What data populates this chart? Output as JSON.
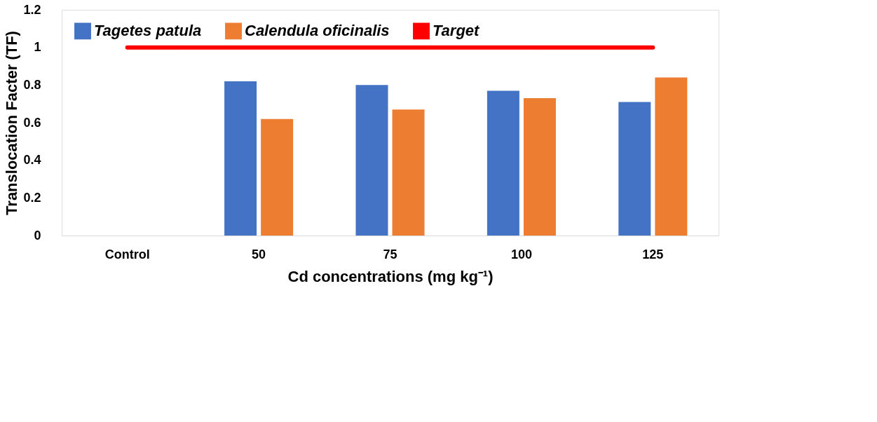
{
  "chart_data": {
    "type": "bar",
    "xlabel": "Cd concentrations (mg kg⁻¹)",
    "ylabel": "Translocation Facter (TF)",
    "categories": [
      "Control",
      "50",
      "75",
      "100",
      "125"
    ],
    "series": [
      {
        "name": "Tagetes patula",
        "color": "#4472c4",
        "values": [
          null,
          0.82,
          0.8,
          0.77,
          0.71
        ]
      },
      {
        "name": "Calendula oficinalis",
        "color": "#ed7d31",
        "values": [
          null,
          0.62,
          0.67,
          0.73,
          0.84
        ]
      },
      {
        "name": "Target",
        "type": "line",
        "color": "#ff0000",
        "values": [
          1,
          1,
          1,
          1,
          1
        ]
      }
    ],
    "ylim": [
      0,
      1.2
    ],
    "yticks": [
      0,
      0.2,
      0.4,
      0.6,
      0.8,
      1,
      1.2
    ],
    "grid": false,
    "legend": "top left"
  }
}
